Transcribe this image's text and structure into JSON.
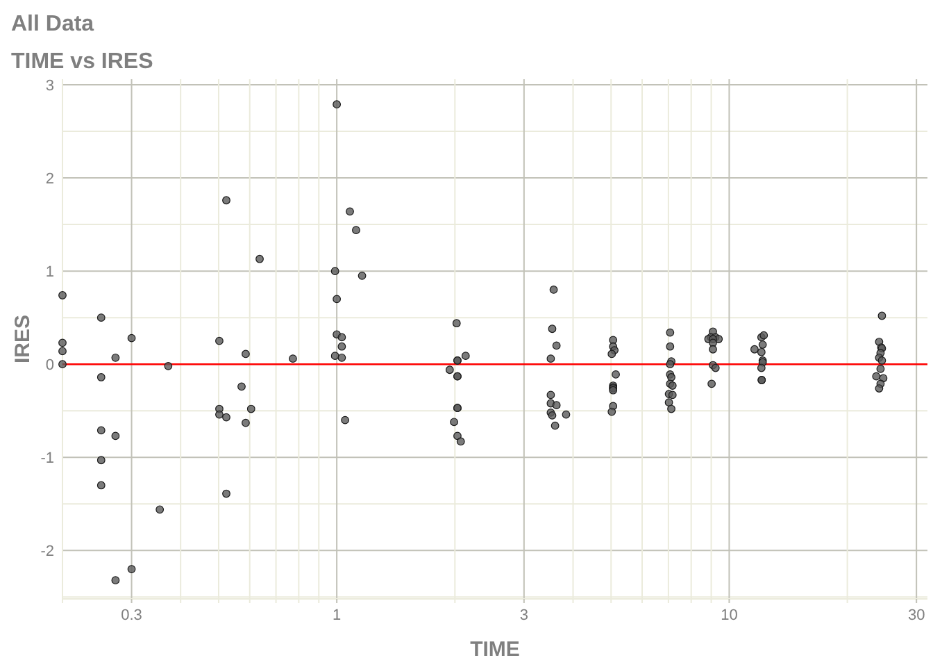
{
  "chart_data": {
    "type": "scatter",
    "title": "All Data",
    "subtitle": "TIME vs IRES",
    "xlabel": "TIME",
    "ylabel": "IRES",
    "log": "x",
    "grid": true,
    "marker": "circle",
    "xlim": [
      0.2,
      32
    ],
    "ylim": [
      -2.52,
      3.06
    ],
    "xticks": [
      {
        "value": 0.2,
        "label": null
      },
      0.3,
      {
        "value": 0.4,
        "label": null
      },
      {
        "value": 0.5,
        "label": null
      },
      {
        "value": 0.6,
        "label": null
      },
      {
        "value": 0.7,
        "label": null
      },
      {
        "value": 0.8,
        "label": null
      },
      {
        "value": 0.9,
        "label": null
      },
      1,
      {
        "value": 2,
        "label": null
      },
      3,
      {
        "value": 4,
        "label": null
      },
      {
        "value": 5,
        "label": null
      },
      {
        "value": 6,
        "label": null
      },
      {
        "value": 7,
        "label": null
      },
      {
        "value": 8,
        "label": null
      },
      {
        "value": 9,
        "label": null
      },
      10,
      {
        "value": 20,
        "label": null
      },
      30
    ],
    "yticks": [
      {
        "value": -2.5,
        "label": null
      },
      -2,
      {
        "value": -1.5,
        "label": null
      },
      -1,
      {
        "value": -0.5,
        "label": null
      },
      0,
      {
        "value": 0.5,
        "label": null
      },
      1,
      {
        "value": 1.5,
        "label": null
      },
      2,
      {
        "value": 2.5,
        "label": null
      },
      3
    ],
    "ref_lines": [
      {
        "axis": "y",
        "value": 0,
        "color": "#ff0000"
      }
    ],
    "series": [
      {
        "color": "#5a5a5a",
        "x": [
          1.0,
          0.523,
          0.636,
          0.99,
          1.0,
          0.2,
          0.251,
          0.2,
          0.2,
          0.2,
          0.3,
          0.502,
          0.273,
          0.586,
          0.773,
          0.372,
          0.251,
          0.572,
          0.502,
          0.605,
          0.502,
          0.523,
          0.586,
          0.251,
          0.273,
          0.251,
          0.251,
          0.523,
          0.354,
          0.3,
          0.273,
          1.08,
          1.12,
          1.16,
          1.0,
          1.03,
          1.03,
          0.99,
          1.03,
          1.05,
          2.02,
          2.13,
          2.03,
          2.03,
          1.94,
          2.03,
          2.03,
          2.03,
          2.03,
          1.99,
          2.03,
          2.07,
          3.57,
          3.54,
          3.63,
          3.51,
          3.51,
          3.51,
          3.63,
          3.51,
          3.54,
          3.84,
          3.6,
          5.06,
          5.06,
          5.1,
          5.02,
          5.14,
          5.06,
          5.06,
          5.06,
          5.06,
          5.06,
          5.02,
          7.07,
          7.07,
          7.12,
          7.07,
          7.07,
          7.12,
          7.07,
          7.17,
          7.02,
          7.17,
          7.02,
          7.12,
          9.09,
          8.98,
          9.22,
          8.85,
          9.4,
          9.09,
          9.09,
          9.09,
          9.09,
          9.23,
          9.02,
          12.08,
          12.25,
          11.6,
          12.17,
          12.08,
          12.17,
          12.17,
          12.08,
          12.1,
          12.1,
          24.5,
          24.1,
          24.4,
          24.5,
          24.3,
          24.1,
          24.5,
          24.3,
          23.7,
          24.7,
          24.3,
          24.1
        ],
        "values": [
          2.79,
          1.76,
          1.13,
          1.0,
          0.7,
          0.74,
          0.5,
          0.23,
          0.14,
          0.0,
          0.28,
          0.25,
          0.07,
          0.11,
          0.06,
          -0.02,
          -0.14,
          -0.24,
          -0.48,
          -0.48,
          -0.54,
          -0.57,
          -0.63,
          -0.71,
          -0.77,
          -1.03,
          -1.3,
          -1.39,
          -1.56,
          -2.2,
          -2.32,
          1.64,
          1.44,
          0.95,
          0.32,
          0.29,
          0.19,
          0.09,
          0.07,
          -0.6,
          0.44,
          0.09,
          0.04,
          0.04,
          -0.06,
          -0.13,
          -0.13,
          -0.47,
          -0.47,
          -0.62,
          -0.77,
          -0.83,
          0.8,
          0.38,
          0.2,
          0.06,
          -0.33,
          -0.42,
          -0.44,
          -0.52,
          -0.55,
          -0.54,
          -0.66,
          0.26,
          0.19,
          0.15,
          0.11,
          -0.11,
          -0.23,
          -0.25,
          -0.26,
          -0.28,
          -0.45,
          -0.51,
          0.34,
          0.19,
          0.03,
          0.0,
          -0.11,
          -0.14,
          -0.21,
          -0.23,
          -0.32,
          -0.33,
          -0.41,
          -0.48,
          0.35,
          0.29,
          0.29,
          0.27,
          0.27,
          0.27,
          0.23,
          0.16,
          -0.01,
          -0.04,
          -0.21,
          0.29,
          0.31,
          0.16,
          0.21,
          0.13,
          0.04,
          0.02,
          -0.04,
          -0.17,
          -0.17,
          0.52,
          0.24,
          0.18,
          0.17,
          0.12,
          0.07,
          0.04,
          -0.05,
          -0.13,
          -0.15,
          -0.21,
          -0.26
        ]
      }
    ]
  }
}
